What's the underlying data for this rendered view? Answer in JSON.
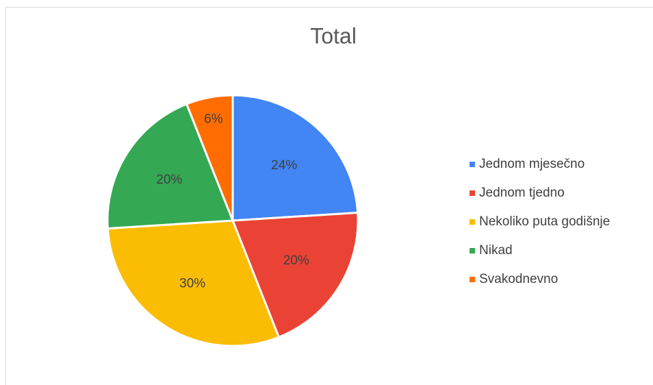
{
  "chart_data": {
    "type": "pie",
    "title": "Total",
    "categories": [
      "Jednom mjesečno",
      "Jednom tjedno",
      "Nekoliko puta godišnje",
      "Nikad",
      "Svakodnevno"
    ],
    "values": [
      24,
      20,
      30,
      20,
      6
    ],
    "value_labels": [
      "24%",
      "20%",
      "30%",
      "20%",
      "6%"
    ],
    "colors": [
      "#4285f4",
      "#ea4335",
      "#fbbc04",
      "#34a853",
      "#ff6d01"
    ],
    "legend": "right"
  }
}
